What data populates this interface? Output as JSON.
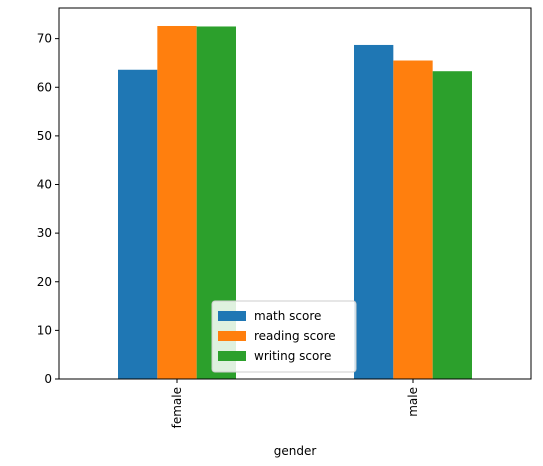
{
  "chart_data": {
    "type": "bar",
    "xlabel": "gender",
    "ylabel": "",
    "categories": [
      "female",
      "male"
    ],
    "ylim": [
      0,
      76.3
    ],
    "yticks": [
      0,
      10,
      20,
      30,
      40,
      50,
      60,
      70
    ],
    "series": [
      {
        "name": "math score",
        "color": "#1f77b4",
        "values": [
          63.6,
          68.7
        ]
      },
      {
        "name": "reading score",
        "color": "#ff7f0e",
        "values": [
          72.6,
          65.5
        ]
      },
      {
        "name": "writing score",
        "color": "#2ca02c",
        "values": [
          72.5,
          63.3
        ]
      }
    ],
    "legend_position": "lower-center",
    "grid": false
  }
}
